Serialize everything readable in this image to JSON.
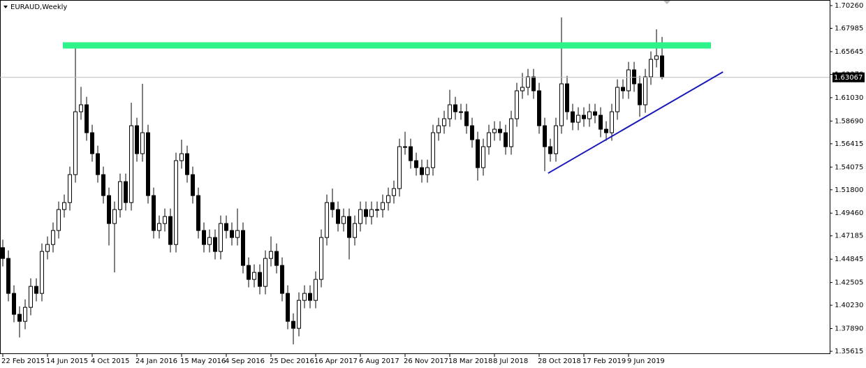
{
  "chart_data": {
    "type": "candlestick",
    "title": "EURAUD,Weekly",
    "categories": [
      "22 Feb 2015",
      null,
      null,
      null,
      null,
      null,
      null,
      null,
      "14 Jun 2015",
      null,
      null,
      null,
      null,
      null,
      null,
      null,
      "4 Oct 2015",
      null,
      null,
      null,
      null,
      null,
      null,
      null,
      "24 Jan 2016",
      null,
      null,
      null,
      null,
      null,
      null,
      null,
      "15 May 2016",
      null,
      null,
      null,
      null,
      null,
      null,
      null,
      "4 Sep 2016",
      null,
      null,
      null,
      null,
      null,
      null,
      null,
      "25 Dec 2016",
      null,
      null,
      null,
      null,
      null,
      null,
      null,
      "16 Apr 2017",
      null,
      null,
      null,
      null,
      null,
      null,
      null,
      "6 Aug 2017",
      null,
      null,
      null,
      null,
      null,
      null,
      null,
      "26 Nov 2017",
      null,
      null,
      null,
      null,
      null,
      null,
      null,
      "18 Mar 2018",
      null,
      null,
      null,
      null,
      null,
      null,
      null,
      "8 Jul 2018",
      null,
      null,
      null,
      null,
      null,
      null,
      null,
      "28 Oct 2018",
      null,
      null,
      null,
      null,
      null,
      null,
      null,
      "17 Feb 2019",
      null,
      null,
      null,
      null,
      null,
      null,
      null,
      "9 Jun 2019",
      null,
      null,
      null,
      null,
      null,
      null
    ],
    "open": [
      1.46,
      1.4492,
      1.4142,
      1.3932,
      1.3862,
      1.4002,
      1.4212,
      1.4142,
      1.4562,
      1.4632,
      1.4772,
      1.4982,
      1.5052,
      1.5332,
      1.5962,
      1.6032,
      1.5752,
      1.5542,
      1.5332,
      1.5122,
      1.4842,
      1.4982,
      1.5262,
      1.5052,
      1.5822,
      1.5542,
      1.5752,
      1.5122,
      1.4772,
      1.4842,
      1.4912,
      1.4632,
      1.5472,
      1.5542,
      1.5332,
      1.5122,
      1.4772,
      1.4632,
      1.4702,
      1.4562,
      1.4842,
      1.4772,
      1.4702,
      1.4772,
      1.4422,
      1.4282,
      1.4352,
      1.4212,
      1.4492,
      1.4562,
      1.4422,
      1.4142,
      1.3862,
      1.3792,
      1.4072,
      1.4142,
      1.4072,
      1.4282,
      1.4702,
      1.5052,
      1.4982,
      1.4842,
      1.4912,
      1.4702,
      1.4842,
      1.4982,
      1.4912,
      1.4982,
      1.4982,
      1.5052,
      1.5122,
      1.5192,
      1.5612,
      1.5612,
      1.5472,
      1.5402,
      1.5332,
      1.5402,
      1.5752,
      1.5822,
      1.5892,
      1.6032,
      1.5962,
      1.5962,
      1.5822,
      1.5682,
      1.5402,
      1.5612,
      1.5752,
      1.5787,
      1.5752,
      1.5612,
      1.5892,
      1.6172,
      1.6207,
      1.6312,
      1.6172,
      1.5822,
      1.5612,
      1.5542,
      1.5822,
      1.6242,
      1.5962,
      1.5857,
      1.5927,
      1.5892,
      1.5962,
      1.5927,
      1.5787,
      1.5752,
      1.5962,
      1.6207,
      1.6172,
      1.6382,
      1.6242,
      1.6032,
      1.6312,
      1.6487,
      1.6522
    ],
    "high": [
      1.468,
      1.4572,
      1.4222,
      1.4012,
      1.4082,
      1.4292,
      1.4292,
      1.4642,
      1.4712,
      1.4852,
      1.5062,
      1.5132,
      1.5412,
      1.6627,
      1.6212,
      1.6112,
      1.5832,
      1.5622,
      1.5412,
      1.5202,
      1.5062,
      1.5342,
      1.5342,
      1.6052,
      1.5902,
      1.6242,
      1.5832,
      1.5202,
      1.4922,
      1.4992,
      1.4992,
      1.5552,
      1.5682,
      1.5622,
      1.5412,
      1.5202,
      1.4852,
      1.4782,
      1.4782,
      1.4922,
      1.4922,
      1.4852,
      1.4992,
      1.4852,
      1.4502,
      1.4432,
      1.4432,
      1.4572,
      1.4712,
      1.4642,
      1.4502,
      1.4222,
      1.3942,
      1.4152,
      1.4222,
      1.4222,
      1.4362,
      1.4782,
      1.5132,
      1.5192,
      1.5062,
      1.4992,
      1.4992,
      1.4922,
      1.5062,
      1.5062,
      1.5062,
      1.5062,
      1.5132,
      1.5202,
      1.5272,
      1.5692,
      1.5762,
      1.5692,
      1.5552,
      1.5482,
      1.5482,
      1.5832,
      1.5902,
      1.5972,
      1.6182,
      1.6112,
      1.6042,
      1.6042,
      1.5902,
      1.5762,
      1.5692,
      1.5832,
      1.5867,
      1.5867,
      1.5832,
      1.5972,
      1.6252,
      1.6352,
      1.6392,
      1.6392,
      1.6252,
      1.5902,
      1.5692,
      1.5902,
      1.6907,
      1.6322,
      1.6042,
      1.6007,
      1.6007,
      1.6042,
      1.6042,
      1.6007,
      1.5867,
      1.6042,
      1.6287,
      1.6287,
      1.6462,
      1.6462,
      1.6322,
      1.6392,
      1.6567,
      1.6788,
      1.6712
    ],
    "low": [
      1.4412,
      1.4062,
      1.3852,
      1.37,
      1.3782,
      1.3922,
      1.4062,
      1.4062,
      1.4482,
      1.4552,
      1.4692,
      1.4902,
      1.4972,
      1.5252,
      1.5882,
      1.5672,
      1.5462,
      1.5252,
      1.5042,
      1.4622,
      1.4352,
      1.4902,
      1.4972,
      1.4972,
      1.5462,
      1.5462,
      1.5042,
      1.4692,
      1.4692,
      1.4762,
      1.4552,
      1.4552,
      1.5392,
      1.5252,
      1.5042,
      1.4692,
      1.4552,
      1.4552,
      1.4482,
      1.4482,
      1.4692,
      1.4622,
      1.4622,
      1.4342,
      1.4202,
      1.4202,
      1.4132,
      1.4132,
      1.4412,
      1.4342,
      1.4062,
      1.3782,
      1.3631,
      1.3712,
      1.3992,
      1.3992,
      1.3992,
      1.4202,
      1.4622,
      1.4902,
      1.4762,
      1.4762,
      1.4482,
      1.4622,
      1.4762,
      1.4832,
      1.4832,
      1.4902,
      1.4902,
      1.4972,
      1.5042,
      1.5112,
      1.5532,
      1.5392,
      1.5322,
      1.5252,
      1.5252,
      1.5322,
      1.5672,
      1.5742,
      1.5812,
      1.5882,
      1.5882,
      1.5742,
      1.5602,
      1.5272,
      1.5322,
      1.5532,
      1.5672,
      1.5672,
      1.5532,
      1.5532,
      1.5812,
      1.6092,
      1.6127,
      1.6092,
      1.5742,
      1.5367,
      1.5462,
      1.5462,
      1.5742,
      1.5882,
      1.5777,
      1.5777,
      1.5812,
      1.5812,
      1.5847,
      1.5707,
      1.5672,
      1.5672,
      1.5882,
      1.6092,
      1.6092,
      1.6162,
      1.5912,
      1.5952,
      1.6232,
      1.6407,
      1.6287
    ],
    "close": [
      1.4492,
      1.4142,
      1.3932,
      1.3862,
      1.4002,
      1.4212,
      1.4142,
      1.4562,
      1.4632,
      1.4772,
      1.4982,
      1.5052,
      1.5332,
      1.5962,
      1.6032,
      1.5752,
      1.5542,
      1.5332,
      1.5122,
      1.4842,
      1.4982,
      1.5262,
      1.5052,
      1.5822,
      1.5542,
      1.5752,
      1.5122,
      1.4772,
      1.4842,
      1.4912,
      1.4632,
      1.5472,
      1.5542,
      1.5332,
      1.5122,
      1.4772,
      1.4632,
      1.4702,
      1.4562,
      1.4842,
      1.4772,
      1.4702,
      1.4772,
      1.4422,
      1.4282,
      1.4352,
      1.4212,
      1.4492,
      1.4562,
      1.4422,
      1.4142,
      1.3862,
      1.3792,
      1.4072,
      1.4142,
      1.4072,
      1.4282,
      1.4702,
      1.5052,
      1.4982,
      1.4842,
      1.4912,
      1.4702,
      1.4842,
      1.4982,
      1.4912,
      1.4982,
      1.4982,
      1.5052,
      1.5122,
      1.5192,
      1.5612,
      1.5612,
      1.5472,
      1.5402,
      1.5332,
      1.5402,
      1.5752,
      1.5822,
      1.5892,
      1.6032,
      1.5962,
      1.5962,
      1.5822,
      1.5682,
      1.5402,
      1.5612,
      1.5752,
      1.5787,
      1.5752,
      1.5612,
      1.5892,
      1.6172,
      1.6207,
      1.6312,
      1.6172,
      1.5822,
      1.5612,
      1.5542,
      1.5822,
      1.6242,
      1.5962,
      1.5857,
      1.5927,
      1.5892,
      1.5962,
      1.5927,
      1.5787,
      1.5752,
      1.5962,
      1.6207,
      1.6172,
      1.6382,
      1.6242,
      1.6032,
      1.6312,
      1.6487,
      1.6522,
      1.6307
    ],
    "up_color": "#ffffff",
    "down_color": "#000000",
    "wick_color": "#000000",
    "ylim": [
      1.3534,
      1.7082
    ],
    "yticks": [
      {
        "value": 1.7026,
        "label": "1.70260"
      },
      1.67985,
      1.65645,
      {
        "value": 1.6337,
        "label": "1.63370"
      },
      {
        "value": 1.6103,
        "label": "1.61030"
      },
      {
        "value": 1.5869,
        "label": "1.58690"
      },
      1.56415,
      1.54075,
      {
        "value": 1.518,
        "label": "1.51800"
      },
      {
        "value": 1.4946,
        "label": "1.49460"
      },
      1.47185,
      1.44845,
      1.42505,
      {
        "value": 1.4023,
        "label": "1.40230"
      },
      {
        "value": 1.3789,
        "label": "1.37890"
      },
      1.35615
    ],
    "current_price": 1.63067,
    "resistance": {
      "x": [
        10.75,
        126.75
      ],
      "y": 1.6627,
      "color": "#2ef28a"
    },
    "trendline": {
      "x": [
        97.6,
        128.9
      ],
      "y": [
        1.5346,
        1.6361
      ],
      "color": "#1a1ab8"
    }
  }
}
